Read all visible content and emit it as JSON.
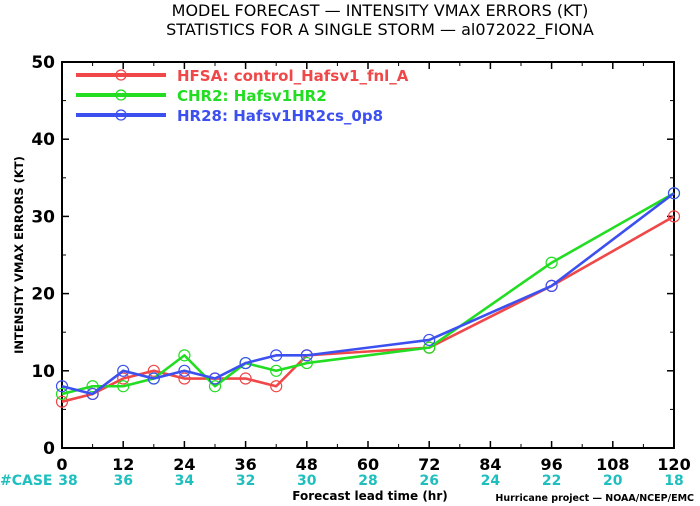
{
  "chart_data": {
    "type": "line",
    "title_line1": "MODEL FORECAST — INTENSITY VMAX ERRORS (KT)",
    "title_line2": "STATISTICS FOR A SINGLE STORM — al072022_FIONA",
    "xlabel": "Forecast lead time (hr)",
    "ylabel": "INTENSITY VMAX ERRORS (KT)",
    "credit": "Hurricane project — NOAA/NCEP/EMC",
    "case_label": "#CASE",
    "xlim": [
      0,
      120
    ],
    "ylim": [
      0,
      50
    ],
    "xticks": [
      0,
      12,
      24,
      36,
      48,
      60,
      72,
      84,
      96,
      108,
      120
    ],
    "yticks": [
      0,
      10,
      20,
      30,
      40,
      50
    ],
    "cases": [
      {
        "x": 0,
        "label": "38"
      },
      {
        "x": 12,
        "label": "36"
      },
      {
        "x": 24,
        "label": "34"
      },
      {
        "x": 36,
        "label": "32"
      },
      {
        "x": 48,
        "label": "30"
      },
      {
        "x": 60,
        "label": "28"
      },
      {
        "x": 72,
        "label": "26"
      },
      {
        "x": 84,
        "label": "24"
      },
      {
        "x": 96,
        "label": "22"
      },
      {
        "x": 108,
        "label": "20"
      },
      {
        "x": 120,
        "label": "18"
      }
    ],
    "legend_placement": "top-left",
    "grid": false,
    "series": [
      {
        "name": "HFSA: control_Hafsv1_fnl_A",
        "color": "#f04848",
        "points": [
          [
            0,
            6
          ],
          [
            6,
            7
          ],
          [
            12,
            9
          ],
          [
            18,
            10
          ],
          [
            24,
            9
          ],
          [
            30,
            9
          ],
          [
            36,
            9
          ],
          [
            42,
            8
          ],
          [
            48,
            12
          ],
          [
            72,
            13
          ],
          [
            96,
            21
          ],
          [
            120,
            30
          ]
        ]
      },
      {
        "name": "CHR2: Hafsv1HR2",
        "color": "#22dd22",
        "points": [
          [
            0,
            7
          ],
          [
            6,
            8
          ],
          [
            12,
            8
          ],
          [
            18,
            9
          ],
          [
            24,
            12
          ],
          [
            30,
            8
          ],
          [
            36,
            11
          ],
          [
            42,
            10
          ],
          [
            48,
            11
          ],
          [
            72,
            13
          ],
          [
            96,
            24
          ],
          [
            120,
            33
          ]
        ]
      },
      {
        "name": "HR28: Hafsv1HR2cs_0p8",
        "color": "#3c50f0",
        "points": [
          [
            0,
            8
          ],
          [
            6,
            7
          ],
          [
            12,
            10
          ],
          [
            18,
            9
          ],
          [
            24,
            10
          ],
          [
            30,
            9
          ],
          [
            36,
            11
          ],
          [
            42,
            12
          ],
          [
            48,
            12
          ],
          [
            72,
            14
          ],
          [
            96,
            21
          ],
          [
            120,
            33
          ]
        ]
      }
    ]
  },
  "colors": {
    "case_color": "#1fbfbf",
    "axis_color": "#000000"
  }
}
